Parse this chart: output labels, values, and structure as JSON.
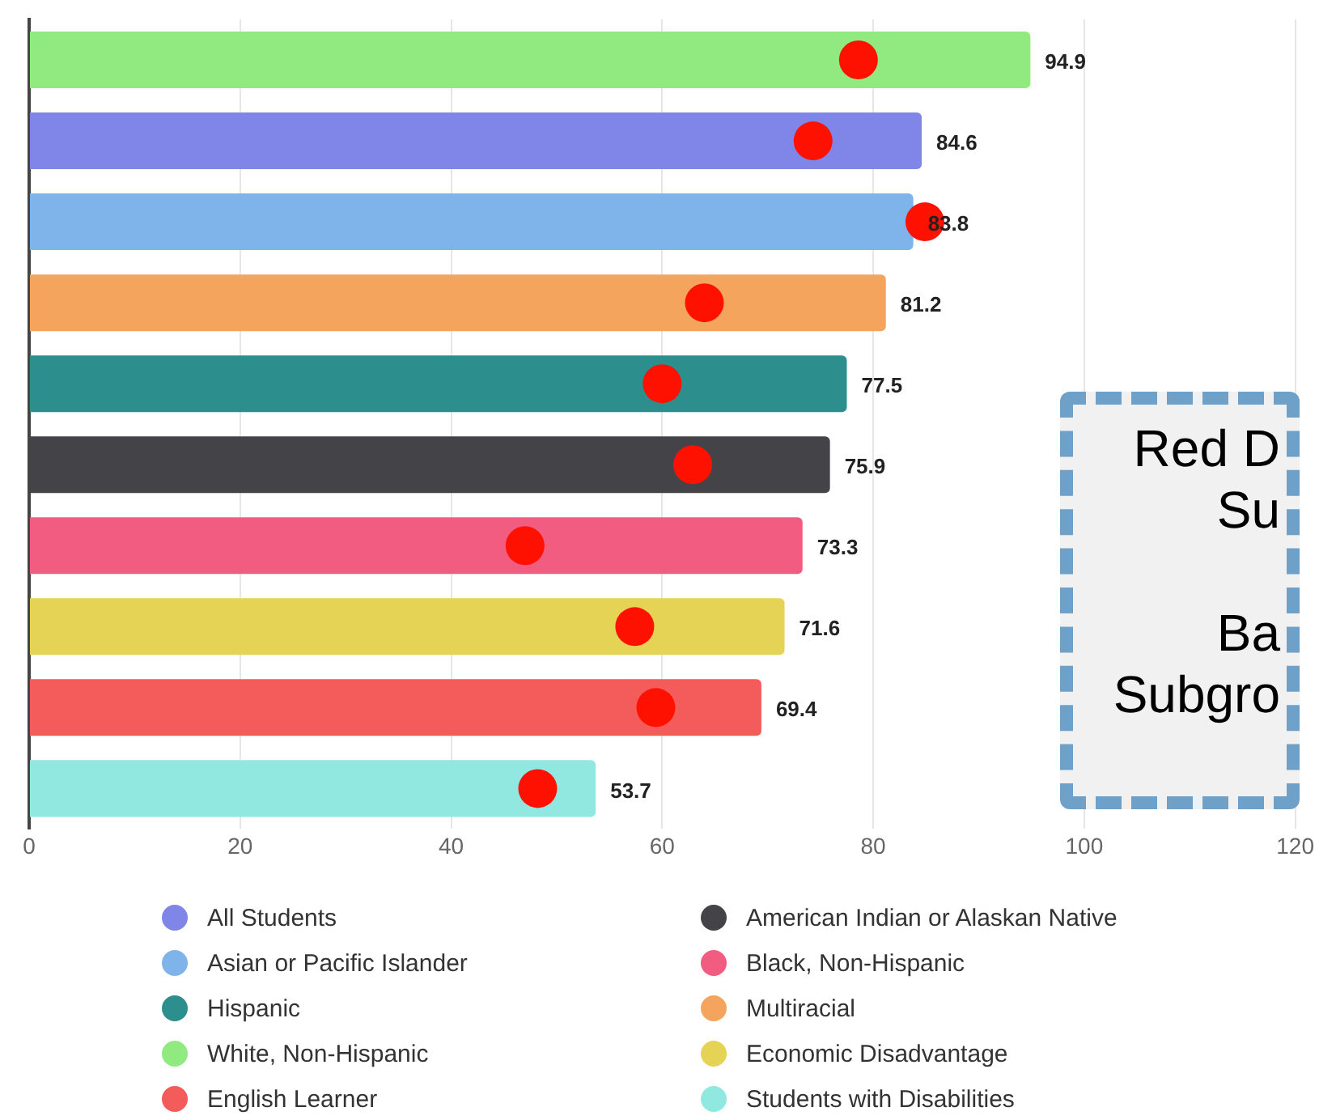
{
  "chart_data": {
    "type": "bar",
    "orientation": "horizontal",
    "stacked": true,
    "categories": [
      null,
      null,
      null,
      null,
      null,
      null,
      null,
      null,
      null,
      null
    ],
    "series": [
      {
        "name": "All Students",
        "color": "#7f86e8",
        "values": [
          null,
          84.6,
          null,
          null,
          null,
          null,
          null,
          null,
          null,
          null
        ],
        "value_labels": [
          null,
          "84.6",
          null,
          null,
          null,
          null,
          null,
          null,
          null,
          null
        ]
      },
      {
        "name": "American Indian or Alaskan Native",
        "color": "#434348",
        "values": [
          null,
          null,
          null,
          null,
          null,
          75.9,
          null,
          null,
          null,
          null
        ],
        "value_labels": [
          null,
          null,
          null,
          null,
          null,
          "75.9",
          null,
          null,
          null,
          null
        ]
      },
      {
        "name": "Asian or Pacific Islander",
        "color": "#7eb4ea",
        "values": [
          null,
          null,
          83.8,
          null,
          null,
          null,
          null,
          null,
          null,
          null
        ],
        "value_labels": [
          null,
          null,
          "83.8",
          null,
          null,
          null,
          null,
          null,
          null,
          null
        ]
      },
      {
        "name": "Black, Non-Hispanic",
        "color": "#f15c80",
        "values": [
          null,
          null,
          null,
          null,
          null,
          null,
          73.3,
          null,
          null,
          null
        ],
        "value_labels": [
          null,
          null,
          null,
          null,
          null,
          null,
          "73.3",
          null,
          null,
          null
        ]
      },
      {
        "name": "Hispanic",
        "color": "#2d8e8e",
        "values": [
          null,
          null,
          null,
          null,
          77.5,
          null,
          null,
          null,
          null,
          null
        ],
        "value_labels": [
          null,
          null,
          null,
          null,
          "77.5",
          null,
          null,
          null,
          null,
          null
        ]
      },
      {
        "name": "Multiracial",
        "color": "#f5a45d",
        "values": [
          null,
          null,
          null,
          81.2,
          null,
          null,
          null,
          null,
          null,
          null
        ],
        "value_labels": [
          null,
          null,
          null,
          "81.2",
          null,
          null,
          null,
          null,
          null,
          null
        ]
      },
      {
        "name": "White, Non-Hispanic",
        "color": "#90ea7f",
        "values": [
          94.9,
          null,
          null,
          null,
          null,
          null,
          null,
          null,
          null,
          null
        ],
        "value_labels": [
          "94.9",
          null,
          null,
          null,
          null,
          null,
          null,
          null,
          null,
          null
        ]
      },
      {
        "name": "Economic Disadvantage",
        "color": "#e4d354",
        "values": [
          null,
          null,
          null,
          null,
          null,
          null,
          null,
          71.6,
          null,
          null
        ],
        "value_labels": [
          null,
          null,
          null,
          null,
          null,
          null,
          null,
          "71.6",
          null,
          null
        ]
      },
      {
        "name": "English Learner",
        "color": "#f45b5b",
        "values": [
          null,
          null,
          null,
          null,
          null,
          null,
          null,
          null,
          69.4,
          null
        ],
        "value_labels": [
          null,
          null,
          null,
          null,
          null,
          null,
          null,
          null,
          "69.4",
          null
        ]
      },
      {
        "name": "Students with Disabilities",
        "color": "#91e8e1",
        "values": [
          null,
          null,
          null,
          null,
          null,
          null,
          null,
          null,
          null,
          53.7
        ],
        "value_labels": [
          null,
          null,
          null,
          null,
          null,
          null,
          null,
          null,
          null,
          "53.7"
        ]
      },
      {
        "type": "scatter",
        "color": "#ff1100",
        "marker": "circle",
        "values": [
          78.6,
          74.3,
          84.9,
          64.0,
          60.0,
          62.9,
          47.0,
          57.4,
          59.4,
          48.2
        ]
      }
    ],
    "xlim": [
      0,
      120
    ],
    "xticks": [
      0,
      20,
      40,
      60,
      80,
      100,
      120
    ],
    "grid": "x",
    "legend": "bottom",
    "tick_labels": "x",
    "annotations": [
      "Red D",
      "Su",
      "Ba",
      "Subgro"
    ]
  }
}
